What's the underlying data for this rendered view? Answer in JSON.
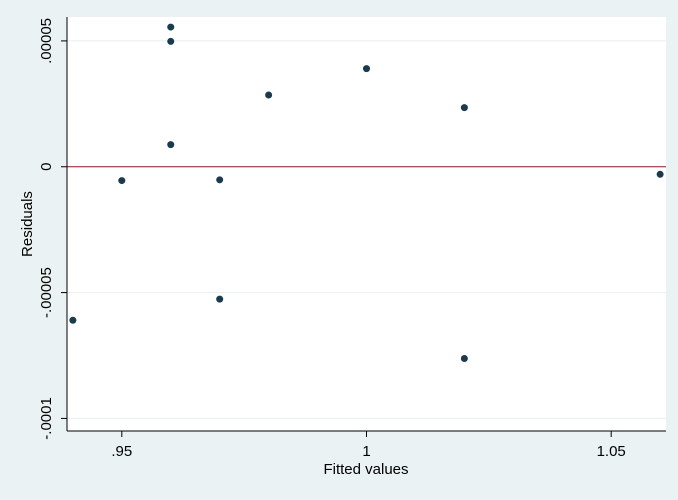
{
  "chart_data": {
    "type": "scatter",
    "xlabel": "Fitted values",
    "ylabel": "Residuals",
    "xlim": [
      0.9388,
      1.0612
    ],
    "ylim": [
      -0.000105,
      5.95e-05
    ],
    "x_ticks": [
      {
        "value": 0.95,
        "label": ".95"
      },
      {
        "value": 1.0,
        "label": "1"
      },
      {
        "value": 1.05,
        "label": "1.05"
      }
    ],
    "y_ticks": [
      {
        "value": -0.0001,
        "label": "-.0001"
      },
      {
        "value": -5e-05,
        "label": "-.00005"
      },
      {
        "value": 0,
        "label": "0"
      },
      {
        "value": 5e-05,
        "label": ".00005"
      }
    ],
    "reference_line": {
      "y": 0,
      "color": "#8b1a2b"
    },
    "grid": true,
    "colors": {
      "marker": "#1a3a4e",
      "plot_bg": "#ffffff",
      "outer_bg": "#eaf2f3",
      "grid": "#e8eef0"
    },
    "points": [
      {
        "x": 0.94,
        "y": -6.1e-05
      },
      {
        "x": 0.95,
        "y": -5.5e-06
      },
      {
        "x": 0.96,
        "y": 5.55e-05
      },
      {
        "x": 0.96,
        "y": 4.98e-05
      },
      {
        "x": 0.96,
        "y": 8.8e-06
      },
      {
        "x": 0.97,
        "y": -5.2e-06
      },
      {
        "x": 0.97,
        "y": -5.26e-05
      },
      {
        "x": 0.98,
        "y": 2.85e-05
      },
      {
        "x": 1.0,
        "y": 3.9e-05
      },
      {
        "x": 1.02,
        "y": 2.35e-05
      },
      {
        "x": 1.02,
        "y": -7.62e-05
      },
      {
        "x": 1.06,
        "y": -3e-06
      }
    ]
  }
}
